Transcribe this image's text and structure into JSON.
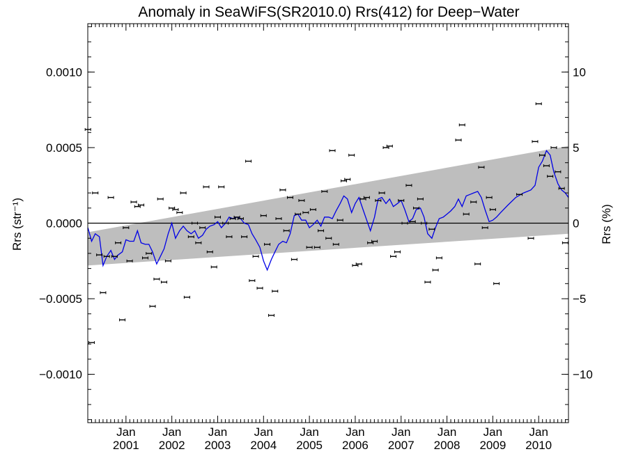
{
  "chart_data": {
    "type": "line",
    "title": "Anomaly in SeaWiFS(SR2010.0) Rrs(412) for Deep−Water",
    "ylabel_left": "Rrs (str⁻¹)",
    "ylabel_right": "Rrs (%)",
    "xlabel": "",
    "xlim": [
      2000.167,
      2010.65
    ],
    "ylim_left": [
      -0.00132,
      0.00132
    ],
    "ylim_right": [
      -13.2,
      13.2
    ],
    "x_ticks": [
      {
        "x": 2001.0,
        "top": "Jan",
        "bottom": "2001"
      },
      {
        "x": 2002.0,
        "top": "Jan",
        "bottom": "2002"
      },
      {
        "x": 2003.0,
        "top": "Jan",
        "bottom": "2003"
      },
      {
        "x": 2004.0,
        "top": "Jan",
        "bottom": "2004"
      },
      {
        "x": 2005.0,
        "top": "Jan",
        "bottom": "2005"
      },
      {
        "x": 2006.0,
        "top": "Jan",
        "bottom": "2006"
      },
      {
        "x": 2007.0,
        "top": "Jan",
        "bottom": "2007"
      },
      {
        "x": 2008.0,
        "top": "Jan",
        "bottom": "2008"
      },
      {
        "x": 2009.0,
        "top": "Jan",
        "bottom": "2009"
      },
      {
        "x": 2010.0,
        "top": "Jan",
        "bottom": "2010"
      }
    ],
    "y_ticks_left": [
      {
        "value": 0.001,
        "label": "0.0010"
      },
      {
        "value": 0.0005,
        "label": "0.0005"
      },
      {
        "value": 0.0,
        "label": "0.0000"
      },
      {
        "value": -0.0005,
        "label": "−0.0005"
      },
      {
        "value": -0.001,
        "label": "−0.0010"
      }
    ],
    "y_ticks_right": [
      {
        "value": 10,
        "label": "10"
      },
      {
        "value": 5,
        "label": "5"
      },
      {
        "value": 0,
        "label": "0"
      },
      {
        "value": -5,
        "label": "−5"
      },
      {
        "value": -10,
        "label": "−10"
      }
    ],
    "trend_band": {
      "upper": [
        [
          2000.167,
          -6e-05
        ],
        [
          2010.167,
          0.000485
        ],
        [
          2010.65,
          0.00051
        ]
      ],
      "lower": [
        [
          2000.167,
          -0.00028
        ],
        [
          2010.65,
          -7e-05
        ]
      ],
      "color": "#bebebe"
    },
    "zero_line": 0.0,
    "series": [
      {
        "type": "line",
        "color": "#0000e6",
        "points": [
          [
            2000.17,
            -3e-05
          ],
          [
            2000.25,
            -0.00012
          ],
          [
            2000.33,
            -7e-05
          ],
          [
            2000.42,
            -9e-05
          ],
          [
            2000.5,
            -0.00028
          ],
          [
            2000.58,
            -0.00022
          ],
          [
            2000.67,
            -0.00018
          ],
          [
            2000.75,
            -0.00024
          ],
          [
            2000.83,
            -0.00021
          ],
          [
            2000.92,
            -0.00019
          ],
          [
            2001.0,
            -0.00011
          ],
          [
            2001.08,
            -0.00012
          ],
          [
            2001.17,
            -0.00012
          ],
          [
            2001.25,
            -5e-05
          ],
          [
            2001.33,
            -0.00013
          ],
          [
            2001.42,
            -0.00014
          ],
          [
            2001.5,
            -0.00014
          ],
          [
            2001.58,
            -0.00019
          ],
          [
            2001.67,
            -0.00027
          ],
          [
            2001.75,
            -0.00022
          ],
          [
            2001.83,
            -0.00017
          ],
          [
            2001.92,
            -7e-05
          ],
          [
            2002.0,
            0.0
          ],
          [
            2002.08,
            -0.0001
          ],
          [
            2002.17,
            -5e-05
          ],
          [
            2002.25,
            -2e-05
          ],
          [
            2002.33,
            -5e-05
          ],
          [
            2002.42,
            -7e-05
          ],
          [
            2002.5,
            -5e-05
          ],
          [
            2002.58,
            -0.0001
          ],
          [
            2002.67,
            -8e-05
          ],
          [
            2002.75,
            -4e-05
          ],
          [
            2002.83,
            -2e-05
          ],
          [
            2002.92,
            -1e-05
          ],
          [
            2003.0,
            1e-05
          ],
          [
            2003.08,
            -3e-05
          ],
          [
            2003.17,
            0.0
          ],
          [
            2003.25,
            4e-05
          ],
          [
            2003.33,
            3e-05
          ],
          [
            2003.42,
            4e-05
          ],
          [
            2003.5,
            3e-05
          ],
          [
            2003.58,
            0.0
          ],
          [
            2003.67,
            -1e-05
          ],
          [
            2003.75,
            -7e-05
          ],
          [
            2003.83,
            -0.00011
          ],
          [
            2003.92,
            -0.00016
          ],
          [
            2004.0,
            -0.00025
          ],
          [
            2004.08,
            -0.00031
          ],
          [
            2004.17,
            -0.00024
          ],
          [
            2004.25,
            -0.00019
          ],
          [
            2004.33,
            -0.00014
          ],
          [
            2004.42,
            -0.00012
          ],
          [
            2004.5,
            -0.00013
          ],
          [
            2004.58,
            -7e-05
          ],
          [
            2004.67,
            5e-05
          ],
          [
            2004.75,
            6e-05
          ],
          [
            2004.83,
            2e-05
          ],
          [
            2004.92,
            2e-05
          ],
          [
            2005.0,
            -3e-05
          ],
          [
            2005.08,
            -1e-05
          ],
          [
            2005.17,
            2e-05
          ],
          [
            2005.25,
            -2e-05
          ],
          [
            2005.33,
            4e-05
          ],
          [
            2005.42,
            4e-05
          ],
          [
            2005.5,
            3e-05
          ],
          [
            2005.58,
            8e-05
          ],
          [
            2005.67,
            0.00013
          ],
          [
            2005.75,
            0.00018
          ],
          [
            2005.83,
            0.00016
          ],
          [
            2005.92,
            7e-05
          ],
          [
            2006.0,
            0.00013
          ],
          [
            2006.08,
            0.00017
          ],
          [
            2006.17,
            9e-05
          ],
          [
            2006.25,
            2e-05
          ],
          [
            2006.33,
            -5e-05
          ],
          [
            2006.42,
            4e-05
          ],
          [
            2006.5,
            0.00016
          ],
          [
            2006.58,
            0.00017
          ],
          [
            2006.67,
            0.00013
          ],
          [
            2006.75,
            0.00016
          ],
          [
            2006.83,
            0.00011
          ],
          [
            2006.92,
            0.00013
          ],
          [
            2007.0,
            0.00015
          ],
          [
            2007.08,
            9e-05
          ],
          [
            2007.17,
            1e-05
          ],
          [
            2007.25,
            3e-05
          ],
          [
            2007.33,
            9e-05
          ],
          [
            2007.42,
            0.0001
          ],
          [
            2007.5,
            4e-05
          ],
          [
            2007.58,
            -7e-05
          ],
          [
            2007.67,
            -0.0001
          ],
          [
            2007.75,
            -3e-05
          ],
          [
            2007.83,
            3e-05
          ],
          [
            2007.92,
            4e-05
          ],
          [
            2008.0,
            6e-05
          ],
          [
            2008.08,
            8e-05
          ],
          [
            2008.17,
            0.00011
          ],
          [
            2008.25,
            0.00016
          ],
          [
            2008.33,
            0.00011
          ],
          [
            2008.42,
            0.00018
          ],
          [
            2008.5,
            0.00019
          ],
          [
            2008.58,
            0.0002
          ],
          [
            2008.67,
            0.00021
          ],
          [
            2008.75,
            0.00017
          ],
          [
            2008.83,
            9e-05
          ],
          [
            2008.92,
            1e-05
          ],
          [
            2009.0,
            2e-05
          ],
          [
            2009.08,
            4e-05
          ],
          [
            2009.17,
            7e-05
          ],
          [
            2009.33,
            0.00012
          ],
          [
            2009.5,
            0.00017
          ],
          [
            2009.67,
            0.0002
          ],
          [
            2009.83,
            0.00022
          ],
          [
            2009.92,
            0.00025
          ],
          [
            2010.0,
            0.00037
          ],
          [
            2010.08,
            0.00041
          ],
          [
            2010.17,
            0.00048
          ],
          [
            2010.25,
            0.00045
          ],
          [
            2010.33,
            0.00034
          ],
          [
            2010.42,
            0.00026
          ],
          [
            2010.5,
            0.00022
          ],
          [
            2010.58,
            0.0002
          ],
          [
            2010.65,
            0.00017
          ]
        ]
      },
      {
        "type": "errorbar",
        "color": "#000000",
        "points": [
          [
            2000.17,
            0.00062
          ],
          [
            2000.25,
            -0.00079
          ],
          [
            2000.33,
            0.0002
          ],
          [
            2000.42,
            -0.00021
          ],
          [
            2000.5,
            -0.00046
          ],
          [
            2000.58,
            -0.00022
          ],
          [
            2000.67,
            0.00017
          ],
          [
            2000.75,
            -0.00022
          ],
          [
            2000.83,
            -0.00013
          ],
          [
            2000.92,
            -0.00064
          ],
          [
            2001.0,
            -3e-05
          ],
          [
            2001.08,
            -0.00025
          ],
          [
            2001.17,
            0.00014
          ],
          [
            2001.25,
            0.00011
          ],
          [
            2001.33,
            0.00012
          ],
          [
            2001.42,
            -0.00023
          ],
          [
            2001.5,
            -0.0002
          ],
          [
            2001.58,
            -0.00055
          ],
          [
            2001.67,
            -0.00037
          ],
          [
            2001.75,
            0.00016
          ],
          [
            2001.83,
            -0.00039
          ],
          [
            2001.92,
            -0.00025
          ],
          [
            2002.0,
            0.0001
          ],
          [
            2002.08,
            9e-05
          ],
          [
            2002.17,
            7e-05
          ],
          [
            2002.25,
            0.0002
          ],
          [
            2002.33,
            -0.00049
          ],
          [
            2002.42,
            -9e-05
          ],
          [
            2002.5,
            0.0
          ],
          [
            2002.58,
            -0.00013
          ],
          [
            2002.67,
            -3e-05
          ],
          [
            2002.75,
            0.00024
          ],
          [
            2002.83,
            -0.00019
          ],
          [
            2002.92,
            -0.00029
          ],
          [
            2003.0,
            4e-05
          ],
          [
            2003.08,
            0.00024
          ],
          [
            2003.17,
            0.0
          ],
          [
            2003.25,
            -9e-05
          ],
          [
            2003.33,
            3e-05
          ],
          [
            2003.42,
            4e-05
          ],
          [
            2003.5,
            3e-05
          ],
          [
            2003.58,
            -9e-05
          ],
          [
            2003.67,
            0.00041
          ],
          [
            2003.75,
            -0.00038
          ],
          [
            2003.83,
            -0.00022
          ],
          [
            2003.92,
            -0.00043
          ],
          [
            2004.0,
            5e-05
          ],
          [
            2004.08,
            -0.00014
          ],
          [
            2004.17,
            -0.00061
          ],
          [
            2004.25,
            -0.00045
          ],
          [
            2004.33,
            3e-05
          ],
          [
            2004.42,
            0.00022
          ],
          [
            2004.5,
            -5e-05
          ],
          [
            2004.58,
            0.00017
          ],
          [
            2004.67,
            -0.00024
          ],
          [
            2004.75,
            6e-05
          ],
          [
            2004.83,
            0.00015
          ],
          [
            2004.92,
            7e-05
          ],
          [
            2005.0,
            -0.00016
          ],
          [
            2005.08,
            9e-05
          ],
          [
            2005.17,
            -0.00016
          ],
          [
            2005.25,
            -5e-05
          ],
          [
            2005.33,
            0.00021
          ],
          [
            2005.42,
            -0.0001
          ],
          [
            2005.5,
            0.00048
          ],
          [
            2005.58,
            -0.00014
          ],
          [
            2005.67,
            2e-05
          ],
          [
            2005.75,
            0.00028
          ],
          [
            2005.83,
            0.00029
          ],
          [
            2005.92,
            0.00045
          ],
          [
            2006.0,
            -0.00028
          ],
          [
            2006.08,
            -0.00027
          ],
          [
            2006.17,
            0.00016
          ],
          [
            2006.25,
            0.00017
          ],
          [
            2006.33,
            -0.00013
          ],
          [
            2006.42,
            -0.00012
          ],
          [
            2006.5,
            0.00015
          ],
          [
            2006.58,
            0.0002
          ],
          [
            2006.67,
            0.0005
          ],
          [
            2006.75,
            0.00051
          ],
          [
            2006.83,
            -0.00022
          ],
          [
            2006.92,
            -0.00019
          ],
          [
            2007.0,
            0.00015
          ],
          [
            2007.08,
            0.0
          ],
          [
            2007.17,
            0.00025
          ],
          [
            2007.25,
            1e-05
          ],
          [
            2007.33,
            0.0001
          ],
          [
            2007.42,
            0.00016
          ],
          [
            2007.5,
            0.0
          ],
          [
            2007.58,
            -0.00039
          ],
          [
            2007.67,
            -4e-05
          ],
          [
            2007.75,
            -0.00031
          ],
          [
            2007.83,
            -0.00023
          ],
          [
            2008.25,
            0.00055
          ],
          [
            2008.33,
            0.00065
          ],
          [
            2008.42,
            6e-05
          ],
          [
            2008.58,
            0.00014
          ],
          [
            2008.67,
            -0.00027
          ],
          [
            2008.75,
            0.00037
          ],
          [
            2008.83,
            -3e-05
          ],
          [
            2008.92,
            0.00017
          ],
          [
            2009.0,
            9e-05
          ],
          [
            2009.08,
            -0.0004
          ],
          [
            2009.58,
            0.00019
          ],
          [
            2009.83,
            -0.0001
          ],
          [
            2009.92,
            0.00054
          ],
          [
            2010.0,
            0.00079
          ],
          [
            2010.08,
            0.00045
          ],
          [
            2010.17,
            0.00038
          ],
          [
            2010.25,
            0.00031
          ],
          [
            2010.33,
            0.0005
          ],
          [
            2010.42,
            0.00034
          ],
          [
            2010.5,
            0.00023
          ],
          [
            2010.58,
            -0.00013
          ]
        ]
      }
    ],
    "grid": false,
    "legend": "none"
  }
}
